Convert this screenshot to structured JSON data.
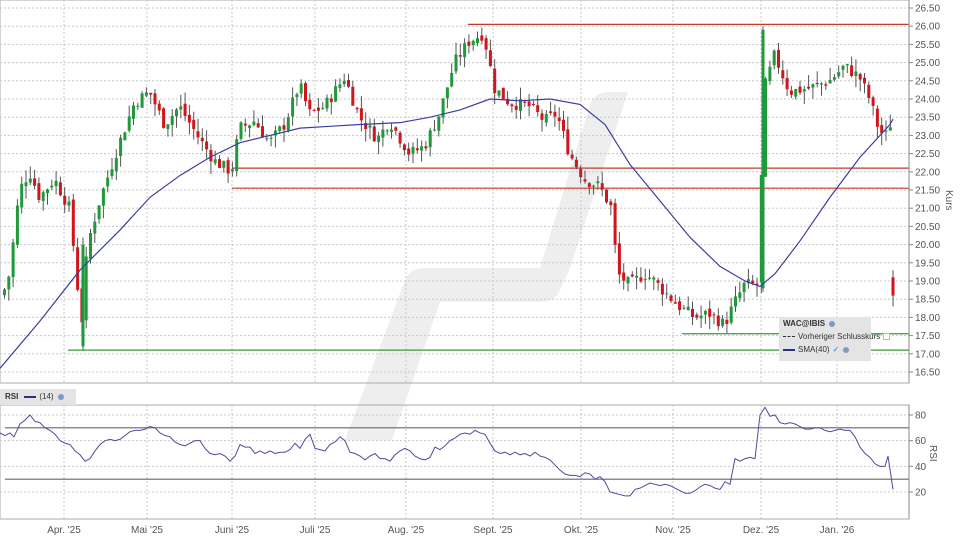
{
  "chart_data": [
    {
      "type": "candlestick",
      "title": "WAC@IBIS",
      "ylabel": "Kurs",
      "ylim": [
        16.5,
        26.5
      ],
      "y_ticks": [
        "26.50",
        "26.00",
        "25.50",
        "25.00",
        "24.50",
        "24.00",
        "23.50",
        "23.00",
        "22.50",
        "22.00",
        "21.50",
        "21.00",
        "20.50",
        "20.00",
        "19.50",
        "19.00",
        "18.50",
        "18.00",
        "17.50",
        "17.00",
        "16.50"
      ],
      "x_ticks": [
        "Apr. '25",
        "Mai '25",
        "Juni '25",
        "Juli '25",
        "Aug. '25",
        "Sept. '25",
        "Okt. '25",
        "Nov. '25",
        "Dez. '25",
        "Jan. '26"
      ],
      "legend": [
        "WAC@IBIS",
        "Vorheriger Schlusskurs",
        "SMA(40)"
      ],
      "horizontal_lines": [
        {
          "value": 26.05,
          "color": "#c0392b"
        },
        {
          "value": 22.1,
          "color": "#c0392b"
        },
        {
          "value": 21.55,
          "color": "#c0392b"
        },
        {
          "value": 17.55,
          "color": "#3a9a3a"
        },
        {
          "value": 17.1,
          "color": "#3a9a3a"
        }
      ],
      "sma40": [
        [
          0,
          16.6
        ],
        [
          40,
          17.9
        ],
        [
          80,
          19.3
        ],
        [
          120,
          20.4
        ],
        [
          150,
          21.3
        ],
        [
          180,
          21.9
        ],
        [
          210,
          22.4
        ],
        [
          240,
          22.8
        ],
        [
          270,
          23.0
        ],
        [
          300,
          23.2
        ],
        [
          330,
          23.25
        ],
        [
          360,
          23.3
        ],
        [
          400,
          23.35
        ],
        [
          430,
          23.5
        ],
        [
          460,
          23.7
        ],
        [
          490,
          24.0
        ],
        [
          520,
          23.95
        ],
        [
          550,
          24.0
        ],
        [
          580,
          23.85
        ],
        [
          605,
          23.3
        ],
        [
          630,
          22.2
        ],
        [
          660,
          21.2
        ],
        [
          690,
          20.2
        ],
        [
          720,
          19.4
        ],
        [
          745,
          19.0
        ],
        [
          760,
          18.85
        ],
        [
          775,
          19.2
        ],
        [
          800,
          20.1
        ],
        [
          830,
          21.3
        ],
        [
          860,
          22.4
        ],
        [
          890,
          23.3
        ],
        [
          893,
          23.45
        ]
      ],
      "ohlc_description": "Daily candles Mar 2025 - Jan 2026; low ~17.1 (Apr), peak ~26.0 (late Aug & early Dec), last ~18.6"
    },
    {
      "type": "line",
      "title": "RSI (14)",
      "ylabel": "RSI",
      "ylim": [
        10,
        90
      ],
      "y_ticks": [
        "80",
        "60",
        "40",
        "20"
      ],
      "reference_lines": [
        70,
        30
      ],
      "series": [
        {
          "name": "RSI(14)",
          "points": [
            [
              0,
              66
            ],
            [
              5,
              64
            ],
            [
              10,
              66
            ],
            [
              14,
              63
            ],
            [
              20,
              73
            ],
            [
              25,
              76
            ],
            [
              30,
              80
            ],
            [
              35,
              75
            ],
            [
              40,
              74
            ],
            [
              45,
              70
            ],
            [
              50,
              68
            ],
            [
              55,
              65
            ],
            [
              60,
              60
            ],
            [
              65,
              58
            ],
            [
              70,
              57
            ],
            [
              75,
              52
            ],
            [
              80,
              49
            ],
            [
              85,
              44
            ],
            [
              90,
              46
            ],
            [
              95,
              52
            ],
            [
              100,
              57
            ],
            [
              105,
              60
            ],
            [
              110,
              61
            ],
            [
              115,
              60
            ],
            [
              120,
              61
            ],
            [
              125,
              64
            ],
            [
              130,
              67
            ],
            [
              135,
              68
            ],
            [
              140,
              68
            ],
            [
              145,
              69
            ],
            [
              150,
              71
            ],
            [
              155,
              70
            ],
            [
              160,
              66
            ],
            [
              165,
              64
            ],
            [
              170,
              63
            ],
            [
              175,
              59
            ],
            [
              180,
              57
            ],
            [
              185,
              56
            ],
            [
              190,
              58
            ],
            [
              195,
              60
            ],
            [
              200,
              60
            ],
            [
              205,
              54
            ],
            [
              210,
              50
            ],
            [
              215,
              49
            ],
            [
              220,
              50
            ],
            [
              225,
              48
            ],
            [
              230,
              44
            ],
            [
              235,
              48
            ],
            [
              240,
              57
            ],
            [
              245,
              55
            ],
            [
              250,
              55
            ],
            [
              255,
              50
            ],
            [
              260,
              52
            ],
            [
              265,
              50
            ],
            [
              270,
              52
            ],
            [
              275,
              50
            ],
            [
              280,
              51
            ],
            [
              285,
              51
            ],
            [
              290,
              53
            ],
            [
              295,
              58
            ],
            [
              300,
              54
            ],
            [
              305,
              61
            ],
            [
              310,
              65
            ],
            [
              315,
              54
            ],
            [
              320,
              53
            ],
            [
              325,
              52
            ],
            [
              330,
              57
            ],
            [
              335,
              59
            ],
            [
              340,
              63
            ],
            [
              345,
              60
            ],
            [
              350,
              51
            ],
            [
              355,
              50
            ],
            [
              360,
              48
            ],
            [
              365,
              45
            ],
            [
              370,
              48
            ],
            [
              375,
              50
            ],
            [
              380,
              46
            ],
            [
              385,
              46
            ],
            [
              390,
              44
            ],
            [
              395,
              49
            ],
            [
              400,
              52
            ],
            [
              405,
              54
            ],
            [
              410,
              52
            ],
            [
              415,
              48
            ],
            [
              420,
              46
            ],
            [
              425,
              45
            ],
            [
              430,
              47
            ],
            [
              435,
              55
            ],
            [
              440,
              53
            ],
            [
              445,
              56
            ],
            [
              450,
              60
            ],
            [
              455,
              62
            ],
            [
              460,
              65
            ],
            [
              465,
              66
            ],
            [
              470,
              65
            ],
            [
              475,
              68
            ],
            [
              480,
              66
            ],
            [
              485,
              65
            ],
            [
              490,
              58
            ],
            [
              495,
              52
            ],
            [
              500,
              50
            ],
            [
              505,
              51
            ],
            [
              510,
              49
            ],
            [
              515,
              51
            ],
            [
              520,
              49
            ],
            [
              525,
              50
            ],
            [
              530,
              48
            ],
            [
              535,
              51
            ],
            [
              540,
              48
            ],
            [
              545,
              47
            ],
            [
              550,
              45
            ],
            [
              555,
              41
            ],
            [
              560,
              37
            ],
            [
              565,
              34
            ],
            [
              570,
              33
            ],
            [
              575,
              33
            ],
            [
              580,
              32
            ],
            [
              585,
              35
            ],
            [
              590,
              34
            ],
            [
              595,
              30
            ],
            [
              600,
              32
            ],
            [
              605,
              28
            ],
            [
              610,
              20
            ],
            [
              615,
              19
            ],
            [
              620,
              18
            ],
            [
              625,
              17
            ],
            [
              630,
              17
            ],
            [
              635,
              22
            ],
            [
              640,
              23
            ],
            [
              645,
              25
            ],
            [
              650,
              27
            ],
            [
              655,
              26
            ],
            [
              660,
              25
            ],
            [
              665,
              26
            ],
            [
              670,
              25
            ],
            [
              675,
              23
            ],
            [
              680,
              21
            ],
            [
              685,
              19
            ],
            [
              690,
              19
            ],
            [
              695,
              21
            ],
            [
              700,
              24
            ],
            [
              705,
              26
            ],
            [
              710,
              25
            ],
            [
              715,
              23
            ],
            [
              720,
              22
            ],
            [
              725,
              28
            ],
            [
              730,
              26
            ],
            [
              735,
              46
            ],
            [
              740,
              44
            ],
            [
              745,
              46
            ],
            [
              750,
              47
            ],
            [
              755,
              46
            ],
            [
              760,
              80
            ],
            [
              765,
              86
            ],
            [
              770,
              79
            ],
            [
              775,
              80
            ],
            [
              780,
              74
            ],
            [
              785,
              73
            ],
            [
              790,
              74
            ],
            [
              795,
              73
            ],
            [
              800,
              71
            ],
            [
              805,
              69
            ],
            [
              810,
              69
            ],
            [
              815,
              70
            ],
            [
              820,
              70
            ],
            [
              825,
              68
            ],
            [
              830,
              67
            ],
            [
              835,
              68
            ],
            [
              840,
              69
            ],
            [
              845,
              68
            ],
            [
              850,
              68
            ],
            [
              855,
              63
            ],
            [
              860,
              55
            ],
            [
              865,
              50
            ],
            [
              870,
              47
            ],
            [
              875,
              42
            ],
            [
              880,
              40
            ],
            [
              885,
              40
            ],
            [
              888,
              48
            ],
            [
              893,
              22
            ]
          ]
        }
      ],
      "x_ticks": [
        "Apr. '25",
        "Mai '25",
        "Juni '25",
        "Juli '25",
        "Aug. '25",
        "Sept. '25",
        "Okt. '25",
        "Nov. '25",
        "Dez. '25",
        "Jan. '26"
      ]
    }
  ],
  "price_axis": {
    "label": "Kurs",
    "ticks": [
      "26.50",
      "26.00",
      "25.50",
      "25.00",
      "24.50",
      "24.00",
      "23.50",
      "23.00",
      "22.50",
      "22.00",
      "21.50",
      "21.00",
      "20.50",
      "20.00",
      "19.50",
      "19.00",
      "18.50",
      "18.00",
      "17.50",
      "17.00",
      "16.50"
    ]
  },
  "rsi_axis": {
    "label": "RSI",
    "ticks": [
      "80",
      "60",
      "40",
      "20"
    ]
  },
  "time_axis": {
    "ticks": [
      "Apr. '25",
      "Mai '25",
      "Juni '25",
      "Juli '25",
      "Aug. '25",
      "Sept. '25",
      "Okt. '25",
      "Nov. '25",
      "Dez. '25",
      "Jan. '26"
    ]
  },
  "legend": {
    "symbol": "WAC@IBIS",
    "prev_close": "Vorheriger Schlusskurs",
    "sma": "SMA(40)",
    "check": "✓"
  },
  "rsi_legend": {
    "name": "RSI",
    "period": "(14)"
  },
  "colors": {
    "up": "#1f9a3a",
    "down": "#d0151b",
    "sma": "#3b3ea0",
    "rsi": "#4a4d9a",
    "resistance": "#c0392b",
    "support": "#3a9a3a",
    "grid": "#c8c8c8"
  }
}
